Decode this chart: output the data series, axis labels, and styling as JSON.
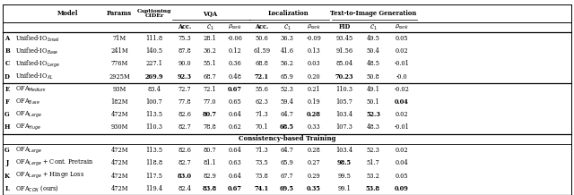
{
  "sec1_rows": [
    {
      "idx": "A",
      "model": "Unified-IO",
      "sub": "Small",
      "params": "71M",
      "vals": [
        "111.8",
        "75.3",
        "28.1",
        "-0.06",
        "50.6",
        "36.3",
        "-0.09",
        "93.45",
        "49.5",
        "0.05"
      ],
      "bold": []
    },
    {
      "idx": "B",
      "model": "Unified-IO",
      "sub": "Base",
      "params": "241M",
      "vals": [
        "140.5",
        "87.8",
        "36.2",
        "0.12",
        "61.59",
        "41.6",
        "0.13",
        "91.56",
        "50.4",
        "0.02"
      ],
      "bold": []
    },
    {
      "idx": "C",
      "model": "Unified-IO",
      "sub": "Large",
      "params": "776M",
      "vals": [
        "227.1",
        "90.0",
        "55.1",
        "0.36",
        "68.8",
        "56.2",
        "0.03",
        "85.04",
        "48.5",
        "-0.01"
      ],
      "bold": []
    },
    {
      "idx": "D",
      "model": "Unified-IO",
      "sub": "XL",
      "params": "2925M",
      "vals": [
        "269.9",
        "92.3",
        "68.7",
        "0.48",
        "72.1",
        "65.9",
        "0.20",
        "70.23",
        "50.8",
        "-0.0"
      ],
      "bold": [
        0,
        1,
        4,
        7
      ]
    }
  ],
  "sec2_rows": [
    {
      "idx": "E",
      "model": "OFA",
      "sub": "Medium",
      "params": "93M",
      "vals": [
        "83.4",
        "72.7",
        "72.1",
        "0.67",
        "55.6",
        "52.3",
        "0.21",
        "110.3",
        "49.1",
        "-0.02"
      ],
      "bold": [
        3
      ]
    },
    {
      "idx": "F",
      "model": "OFA",
      "sub": "Base",
      "params": "182M",
      "vals": [
        "100.7",
        "77.8",
        "77.0",
        "0.65",
        "62.3",
        "59.4",
        "0.19",
        "105.7",
        "50.1",
        "0.04"
      ],
      "bold": [
        9
      ]
    },
    {
      "idx": "G",
      "model": "OFA",
      "sub": "Large",
      "params": "472M",
      "vals": [
        "113.5",
        "82.6",
        "80.7",
        "0.64",
        "71.3",
        "64.7",
        "0.28",
        "103.4",
        "52.3",
        "0.02"
      ],
      "bold": [
        2,
        6,
        8
      ]
    },
    {
      "idx": "H",
      "model": "OFA",
      "sub": "Huge",
      "params": "930M",
      "vals": [
        "110.3",
        "82.7",
        "78.8",
        "0.62",
        "70.1",
        "68.5",
        "0.33",
        "107.3",
        "48.3",
        "-0.01"
      ],
      "bold": [
        5
      ]
    }
  ],
  "sec3_rows": [
    {
      "idx": "G",
      "model": "OFA",
      "sub": "Large",
      "params": "472M",
      "vals": [
        "113.5",
        "82.6",
        "80.7",
        "0.64",
        "71.3",
        "64.7",
        "0.28",
        "103.4",
        "52.3",
        "0.02"
      ],
      "bold": [],
      "suffix": ""
    },
    {
      "idx": "J",
      "model": "OFA",
      "sub": "Large",
      "params": "472M",
      "vals": [
        "118.8",
        "82.7",
        "81.1",
        "0.63",
        "73.5",
        "65.9",
        "0.27",
        "98.5",
        "51.7",
        "0.04"
      ],
      "bold": [
        7
      ],
      "suffix": " + Cont. Pretrain"
    },
    {
      "idx": "K",
      "model": "OFA",
      "sub": "Large",
      "params": "472M",
      "vals": [
        "117.5",
        "83.0",
        "82.9",
        "0.64",
        "73.8",
        "67.7",
        "0.29",
        "99.5",
        "53.2",
        "0.05"
      ],
      "bold": [
        1
      ],
      "suffix": " + Hinge Loss"
    },
    {
      "idx": "L",
      "model": "OFA",
      "sub": "CON",
      "params": "472M",
      "vals": [
        "119.4",
        "82.4",
        "83.8",
        "0.67",
        "74.1",
        "69.5",
        "0.35",
        "99.1",
        "53.8",
        "0.09"
      ],
      "bold": [
        2,
        3,
        4,
        5,
        6,
        8,
        9
      ],
      "suffix": " (ours)"
    }
  ]
}
